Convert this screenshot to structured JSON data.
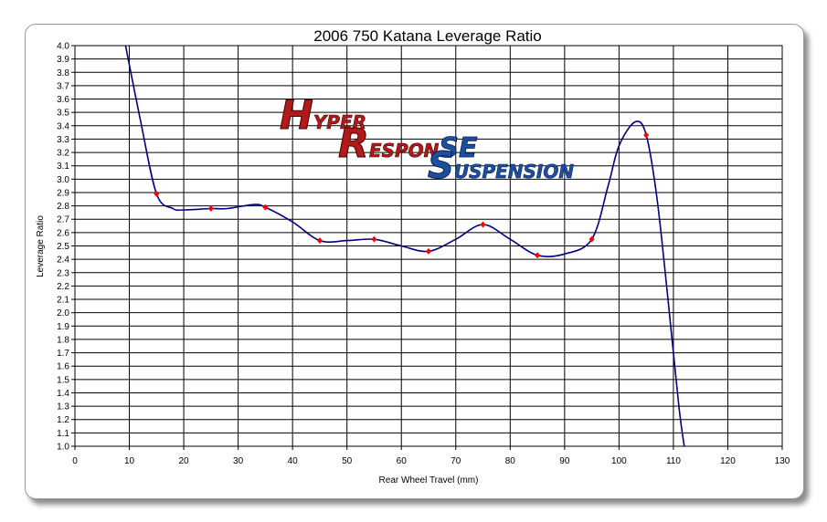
{
  "chart_data": {
    "type": "line",
    "title": "2006 750 Katana Leverage Ratio",
    "xlabel": "Rear Wheel Travel (mm)",
    "ylabel": "Leverage Ratio",
    "xlim": [
      0,
      130
    ],
    "ylim": [
      1.0,
      4.0
    ],
    "x_ticks": [
      "0",
      "10",
      "20",
      "30",
      "40",
      "50",
      "60",
      "70",
      "80",
      "90",
      "100",
      "110",
      "120",
      "130"
    ],
    "y_ticks": [
      "1.0",
      "1.1",
      "1.2",
      "1.3",
      "1.4",
      "1.5",
      "1.6",
      "1.7",
      "1.8",
      "1.9",
      "2.0",
      "2.1",
      "2.2",
      "2.3",
      "2.4",
      "2.5",
      "2.6",
      "2.7",
      "2.8",
      "2.9",
      "3.0",
      "3.1",
      "3.2",
      "3.3",
      "3.4",
      "3.5",
      "3.6",
      "3.7",
      "3.8",
      "3.9",
      "4.0"
    ],
    "grid": true,
    "series": [
      {
        "points": [
          [
            15,
            2.89
          ],
          [
            25,
            2.78
          ],
          [
            35,
            2.79
          ],
          [
            45,
            2.54
          ],
          [
            55,
            2.55
          ],
          [
            65,
            2.46
          ],
          [
            75,
            2.66
          ],
          [
            85,
            2.43
          ],
          [
            95,
            2.55
          ],
          [
            105,
            3.33
          ]
        ],
        "curve": [
          [
            9.3,
            4.0
          ],
          [
            12,
            3.45
          ],
          [
            15,
            2.89
          ],
          [
            18,
            2.78
          ],
          [
            20,
            2.77
          ],
          [
            25,
            2.78
          ],
          [
            28,
            2.78
          ],
          [
            33,
            2.81
          ],
          [
            35,
            2.79
          ],
          [
            40,
            2.68
          ],
          [
            45,
            2.54
          ],
          [
            50,
            2.54
          ],
          [
            55,
            2.55
          ],
          [
            60,
            2.5
          ],
          [
            65,
            2.46
          ],
          [
            70,
            2.55
          ],
          [
            75,
            2.66
          ],
          [
            80,
            2.55
          ],
          [
            85,
            2.43
          ],
          [
            90,
            2.44
          ],
          [
            95,
            2.55
          ],
          [
            98,
            2.95
          ],
          [
            100,
            3.25
          ],
          [
            103,
            3.43
          ],
          [
            105,
            3.33
          ],
          [
            107,
            2.85
          ],
          [
            109,
            2.1
          ],
          [
            111,
            1.3
          ],
          [
            112,
            1.0
          ]
        ],
        "line_color": "#000080",
        "marker_color": "#ff0000"
      }
    ]
  },
  "logo": {
    "line1_initial": "H",
    "line1_rest": "YPER",
    "line2_initial": "R",
    "line2_rest": "ESPON",
    "line2_tail": "SE",
    "line3_initial": "S",
    "line3_rest": "USPENSION",
    "red": "#b01a1a",
    "blue": "#1d4fa0"
  }
}
